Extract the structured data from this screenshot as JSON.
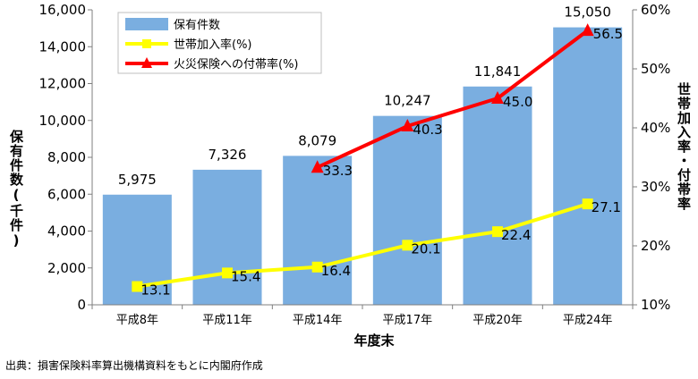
{
  "chart_data": {
    "type": "bar",
    "categories": [
      "平成8年",
      "平成11年",
      "平成14年",
      "平成17年",
      "平成20年",
      "平成24年"
    ],
    "ylabel": "保有件数(千件)",
    "y2label": "世帯加入率・付帯率",
    "xlabel": "年度末",
    "ylim": [
      0,
      16000
    ],
    "y2lim": [
      10,
      60
    ],
    "yticks": [
      "0",
      "2,000",
      "4,000",
      "6,000",
      "8,000",
      "10,000",
      "12,000",
      "14,000",
      "16,000"
    ],
    "y2ticks": [
      "10%",
      "20%",
      "30%",
      "40%",
      "50%",
      "60%"
    ],
    "grid": false,
    "legend_position": "top-left",
    "series": [
      {
        "name": "保有件数",
        "type": "bar",
        "axis": "left",
        "color": "#7aaee0",
        "values": [
          5975,
          7326,
          8079,
          10247,
          11841,
          15050
        ],
        "labels": [
          "5,975",
          "7,326",
          "8,079",
          "10,247",
          "11,841",
          "15,050"
        ]
      },
      {
        "name": "世帯加入率(%)",
        "type": "line",
        "axis": "right",
        "color": "#ffff00",
        "marker": "square",
        "values": [
          13.1,
          15.4,
          16.4,
          20.1,
          22.4,
          27.1
        ],
        "labels": [
          "13.1",
          "15.4",
          "16.4",
          "20.1",
          "22.4",
          "27.1"
        ]
      },
      {
        "name": "火災保険への付帯率(%)",
        "type": "line",
        "axis": "right",
        "color": "#ff0000",
        "marker": "triangle",
        "values": [
          null,
          null,
          33.3,
          40.3,
          45.0,
          56.5
        ],
        "labels": [
          null,
          null,
          "33.3",
          "40.3",
          "45.0",
          "56.5"
        ]
      }
    ]
  },
  "source_note": "出典：損害保険料率算出機構資料をもとに内閣府作成"
}
